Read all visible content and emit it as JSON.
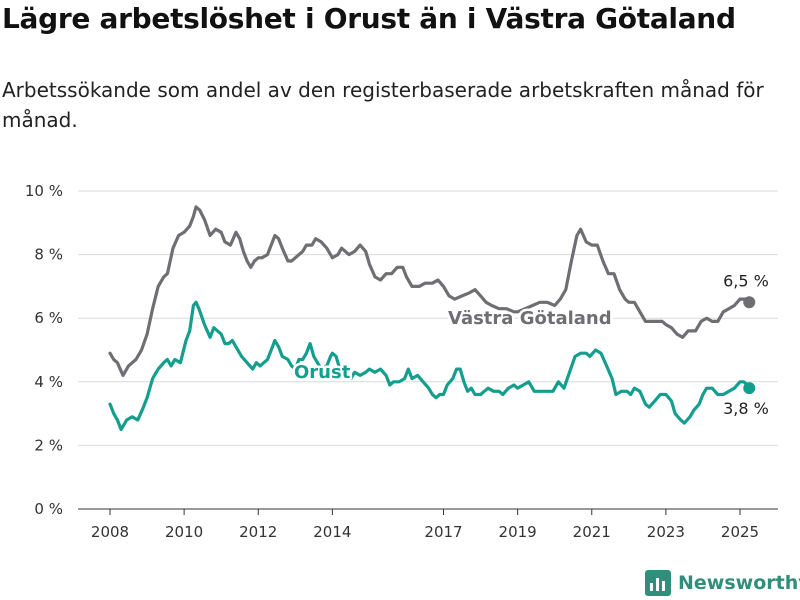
{
  "title": "Lägre arbetslöshet i Orust än i Västra Götaland",
  "subtitle": "Arbetssökande som andel av den registerbaserade arbetskraften månad för månad.",
  "brand": {
    "name": "Newsworthy",
    "icon": "newsworthy-logo-icon"
  },
  "colors": {
    "vastra_gotaland": "#6e6e73",
    "orust": "#139e8e",
    "grid": "#d9d9d9",
    "brand": "#2f8f7a"
  },
  "chart_data": {
    "type": "line",
    "title": "Lägre arbetslöshet i Orust än i Västra Götaland",
    "subtitle": "Arbetssökande som andel av den registerbaserade arbetskraften månad för månad.",
    "xlabel": "",
    "ylabel": "",
    "ylim": [
      0,
      10
    ],
    "y_ticks": [
      0,
      2,
      4,
      6,
      8,
      10
    ],
    "y_tick_labels": [
      "0 %",
      "2 %",
      "4 %",
      "6 %",
      "8 %",
      "10 %"
    ],
    "x_ticks": [
      2008,
      2010,
      2012,
      2014,
      2017,
      2019,
      2021,
      2023,
      2025
    ],
    "x_tick_labels": [
      "2008",
      "2010",
      "2012",
      "2014",
      "2017",
      "2019",
      "2021",
      "2023",
      "2025"
    ],
    "grid": "horizontal",
    "series": [
      {
        "name": "Västra Götaland",
        "color": "#6e6e73",
        "end_label": "6,5 %",
        "points": [
          [
            2008.0,
            4.9
          ],
          [
            2008.1,
            4.7
          ],
          [
            2008.2,
            4.6
          ],
          [
            2008.35,
            4.2
          ],
          [
            2008.5,
            4.5
          ],
          [
            2008.7,
            4.7
          ],
          [
            2008.85,
            5.0
          ],
          [
            2009.0,
            5.5
          ],
          [
            2009.15,
            6.3
          ],
          [
            2009.3,
            7.0
          ],
          [
            2009.45,
            7.3
          ],
          [
            2009.55,
            7.4
          ],
          [
            2009.7,
            8.2
          ],
          [
            2009.85,
            8.6
          ],
          [
            2010.0,
            8.7
          ],
          [
            2010.15,
            8.9
          ],
          [
            2010.25,
            9.2
          ],
          [
            2010.32,
            9.5
          ],
          [
            2010.42,
            9.4
          ],
          [
            2010.55,
            9.1
          ],
          [
            2010.7,
            8.6
          ],
          [
            2010.85,
            8.8
          ],
          [
            2011.0,
            8.7
          ],
          [
            2011.1,
            8.4
          ],
          [
            2011.25,
            8.3
          ],
          [
            2011.4,
            8.7
          ],
          [
            2011.5,
            8.5
          ],
          [
            2011.6,
            8.1
          ],
          [
            2011.7,
            7.8
          ],
          [
            2011.8,
            7.6
          ],
          [
            2011.9,
            7.8
          ],
          [
            2012.0,
            7.9
          ],
          [
            2012.1,
            7.9
          ],
          [
            2012.25,
            8.0
          ],
          [
            2012.35,
            8.3
          ],
          [
            2012.45,
            8.6
          ],
          [
            2012.55,
            8.5
          ],
          [
            2012.65,
            8.2
          ],
          [
            2012.8,
            7.8
          ],
          [
            2012.9,
            7.8
          ],
          [
            2013.0,
            7.9
          ],
          [
            2013.1,
            8.0
          ],
          [
            2013.2,
            8.1
          ],
          [
            2013.3,
            8.3
          ],
          [
            2013.45,
            8.3
          ],
          [
            2013.55,
            8.5
          ],
          [
            2013.7,
            8.4
          ],
          [
            2013.85,
            8.2
          ],
          [
            2014.0,
            7.9
          ],
          [
            2014.15,
            8.0
          ],
          [
            2014.25,
            8.2
          ],
          [
            2014.45,
            8.0
          ],
          [
            2014.6,
            8.1
          ],
          [
            2014.75,
            8.3
          ],
          [
            2014.9,
            8.1
          ],
          [
            2015.0,
            7.7
          ],
          [
            2015.15,
            7.3
          ],
          [
            2015.3,
            7.2
          ],
          [
            2015.45,
            7.4
          ],
          [
            2015.6,
            7.4
          ],
          [
            2015.75,
            7.6
          ],
          [
            2015.9,
            7.6
          ],
          [
            2016.0,
            7.3
          ],
          [
            2016.15,
            7.0
          ],
          [
            2016.35,
            7.0
          ],
          [
            2016.5,
            7.1
          ],
          [
            2016.7,
            7.1
          ],
          [
            2016.85,
            7.2
          ],
          [
            2017.0,
            7.0
          ],
          [
            2017.15,
            6.7
          ],
          [
            2017.3,
            6.6
          ],
          [
            2017.5,
            6.7
          ],
          [
            2017.7,
            6.8
          ],
          [
            2017.85,
            6.9
          ],
          [
            2018.0,
            6.7
          ],
          [
            2018.15,
            6.5
          ],
          [
            2018.3,
            6.4
          ],
          [
            2018.5,
            6.3
          ],
          [
            2018.7,
            6.3
          ],
          [
            2018.9,
            6.2
          ],
          [
            2019.0,
            6.2
          ],
          [
            2019.2,
            6.3
          ],
          [
            2019.4,
            6.4
          ],
          [
            2019.6,
            6.5
          ],
          [
            2019.8,
            6.5
          ],
          [
            2020.0,
            6.4
          ],
          [
            2020.15,
            6.6
          ],
          [
            2020.3,
            6.9
          ],
          [
            2020.45,
            7.8
          ],
          [
            2020.6,
            8.6
          ],
          [
            2020.7,
            8.8
          ],
          [
            2020.85,
            8.4
          ],
          [
            2021.0,
            8.3
          ],
          [
            2021.15,
            8.3
          ],
          [
            2021.3,
            7.8
          ],
          [
            2021.45,
            7.4
          ],
          [
            2021.6,
            7.4
          ],
          [
            2021.75,
            6.9
          ],
          [
            2021.9,
            6.6
          ],
          [
            2022.0,
            6.5
          ],
          [
            2022.15,
            6.5
          ],
          [
            2022.3,
            6.2
          ],
          [
            2022.45,
            5.9
          ],
          [
            2022.7,
            5.9
          ],
          [
            2022.9,
            5.9
          ],
          [
            2023.0,
            5.8
          ],
          [
            2023.15,
            5.7
          ],
          [
            2023.3,
            5.5
          ],
          [
            2023.45,
            5.4
          ],
          [
            2023.6,
            5.6
          ],
          [
            2023.8,
            5.6
          ],
          [
            2023.95,
            5.9
          ],
          [
            2024.1,
            6.0
          ],
          [
            2024.25,
            5.9
          ],
          [
            2024.4,
            5.9
          ],
          [
            2024.55,
            6.2
          ],
          [
            2024.7,
            6.3
          ],
          [
            2024.85,
            6.4
          ],
          [
            2025.0,
            6.6
          ],
          [
            2025.15,
            6.6
          ],
          [
            2025.25,
            6.5
          ]
        ]
      },
      {
        "name": "Orust",
        "color": "#139e8e",
        "end_label": "3,8 %",
        "points": [
          [
            2008.0,
            3.3
          ],
          [
            2008.1,
            3.0
          ],
          [
            2008.2,
            2.8
          ],
          [
            2008.3,
            2.5
          ],
          [
            2008.45,
            2.8
          ],
          [
            2008.6,
            2.9
          ],
          [
            2008.75,
            2.8
          ],
          [
            2008.9,
            3.2
          ],
          [
            2009.0,
            3.5
          ],
          [
            2009.15,
            4.1
          ],
          [
            2009.3,
            4.4
          ],
          [
            2009.45,
            4.6
          ],
          [
            2009.55,
            4.7
          ],
          [
            2009.65,
            4.5
          ],
          [
            2009.75,
            4.7
          ],
          [
            2009.9,
            4.6
          ],
          [
            2010.05,
            5.3
          ],
          [
            2010.15,
            5.6
          ],
          [
            2010.25,
            6.4
          ],
          [
            2010.32,
            6.5
          ],
          [
            2010.4,
            6.3
          ],
          [
            2010.55,
            5.8
          ],
          [
            2010.7,
            5.4
          ],
          [
            2010.8,
            5.7
          ],
          [
            2010.9,
            5.6
          ],
          [
            2011.0,
            5.5
          ],
          [
            2011.1,
            5.2
          ],
          [
            2011.2,
            5.2
          ],
          [
            2011.3,
            5.3
          ],
          [
            2011.4,
            5.1
          ],
          [
            2011.55,
            4.8
          ],
          [
            2011.7,
            4.6
          ],
          [
            2011.85,
            4.4
          ],
          [
            2011.95,
            4.6
          ],
          [
            2012.05,
            4.5
          ],
          [
            2012.15,
            4.6
          ],
          [
            2012.25,
            4.7
          ],
          [
            2012.35,
            5.0
          ],
          [
            2012.45,
            5.3
          ],
          [
            2012.55,
            5.1
          ],
          [
            2012.65,
            4.8
          ],
          [
            2012.8,
            4.7
          ],
          [
            2012.9,
            4.5
          ],
          [
            2013.0,
            4.4
          ],
          [
            2013.1,
            4.7
          ],
          [
            2013.2,
            4.7
          ],
          [
            2013.3,
            4.9
          ],
          [
            2013.4,
            5.2
          ],
          [
            2013.5,
            4.8
          ],
          [
            2013.6,
            4.6
          ],
          [
            2013.7,
            4.4
          ],
          [
            2013.85,
            4.5
          ],
          [
            2013.95,
            4.8
          ],
          [
            2014.0,
            4.9
          ],
          [
            2014.1,
            4.8
          ],
          [
            2014.2,
            4.4
          ],
          [
            2014.35,
            4.2
          ],
          [
            2014.5,
            4.1
          ],
          [
            2014.6,
            4.3
          ],
          [
            2014.75,
            4.2
          ],
          [
            2014.9,
            4.3
          ],
          [
            2015.0,
            4.4
          ],
          [
            2015.15,
            4.3
          ],
          [
            2015.3,
            4.4
          ],
          [
            2015.45,
            4.2
          ],
          [
            2015.55,
            3.9
          ],
          [
            2015.65,
            4.0
          ],
          [
            2015.8,
            4.0
          ],
          [
            2015.95,
            4.1
          ],
          [
            2016.05,
            4.4
          ],
          [
            2016.15,
            4.1
          ],
          [
            2016.3,
            4.2
          ],
          [
            2016.45,
            4.0
          ],
          [
            2016.6,
            3.8
          ],
          [
            2016.7,
            3.6
          ],
          [
            2016.8,
            3.5
          ],
          [
            2016.9,
            3.6
          ],
          [
            2017.0,
            3.6
          ],
          [
            2017.1,
            3.9
          ],
          [
            2017.25,
            4.1
          ],
          [
            2017.35,
            4.4
          ],
          [
            2017.45,
            4.4
          ],
          [
            2017.55,
            4.0
          ],
          [
            2017.65,
            3.7
          ],
          [
            2017.75,
            3.8
          ],
          [
            2017.85,
            3.6
          ],
          [
            2018.0,
            3.6
          ],
          [
            2018.1,
            3.7
          ],
          [
            2018.2,
            3.8
          ],
          [
            2018.35,
            3.7
          ],
          [
            2018.5,
            3.7
          ],
          [
            2018.6,
            3.6
          ],
          [
            2018.75,
            3.8
          ],
          [
            2018.9,
            3.9
          ],
          [
            2019.0,
            3.8
          ],
          [
            2019.15,
            3.9
          ],
          [
            2019.3,
            4.0
          ],
          [
            2019.45,
            3.7
          ],
          [
            2019.6,
            3.7
          ],
          [
            2019.8,
            3.7
          ],
          [
            2019.95,
            3.7
          ],
          [
            2020.1,
            4.0
          ],
          [
            2020.25,
            3.8
          ],
          [
            2020.4,
            4.3
          ],
          [
            2020.55,
            4.8
          ],
          [
            2020.7,
            4.9
          ],
          [
            2020.85,
            4.9
          ],
          [
            2020.95,
            4.8
          ],
          [
            2021.1,
            5.0
          ],
          [
            2021.25,
            4.9
          ],
          [
            2021.4,
            4.5
          ],
          [
            2021.55,
            4.1
          ],
          [
            2021.65,
            3.6
          ],
          [
            2021.8,
            3.7
          ],
          [
            2021.95,
            3.7
          ],
          [
            2022.05,
            3.6
          ],
          [
            2022.15,
            3.8
          ],
          [
            2022.3,
            3.7
          ],
          [
            2022.45,
            3.3
          ],
          [
            2022.55,
            3.2
          ],
          [
            2022.7,
            3.4
          ],
          [
            2022.85,
            3.6
          ],
          [
            2023.0,
            3.6
          ],
          [
            2023.15,
            3.4
          ],
          [
            2023.25,
            3.0
          ],
          [
            2023.4,
            2.8
          ],
          [
            2023.5,
            2.7
          ],
          [
            2023.65,
            2.9
          ],
          [
            2023.75,
            3.1
          ],
          [
            2023.9,
            3.3
          ],
          [
            2024.0,
            3.6
          ],
          [
            2024.1,
            3.8
          ],
          [
            2024.25,
            3.8
          ],
          [
            2024.4,
            3.6
          ],
          [
            2024.55,
            3.6
          ],
          [
            2024.7,
            3.7
          ],
          [
            2024.85,
            3.8
          ],
          [
            2025.0,
            4.0
          ],
          [
            2025.1,
            4.0
          ],
          [
            2025.2,
            3.9
          ],
          [
            2025.25,
            3.8
          ]
        ]
      }
    ]
  }
}
